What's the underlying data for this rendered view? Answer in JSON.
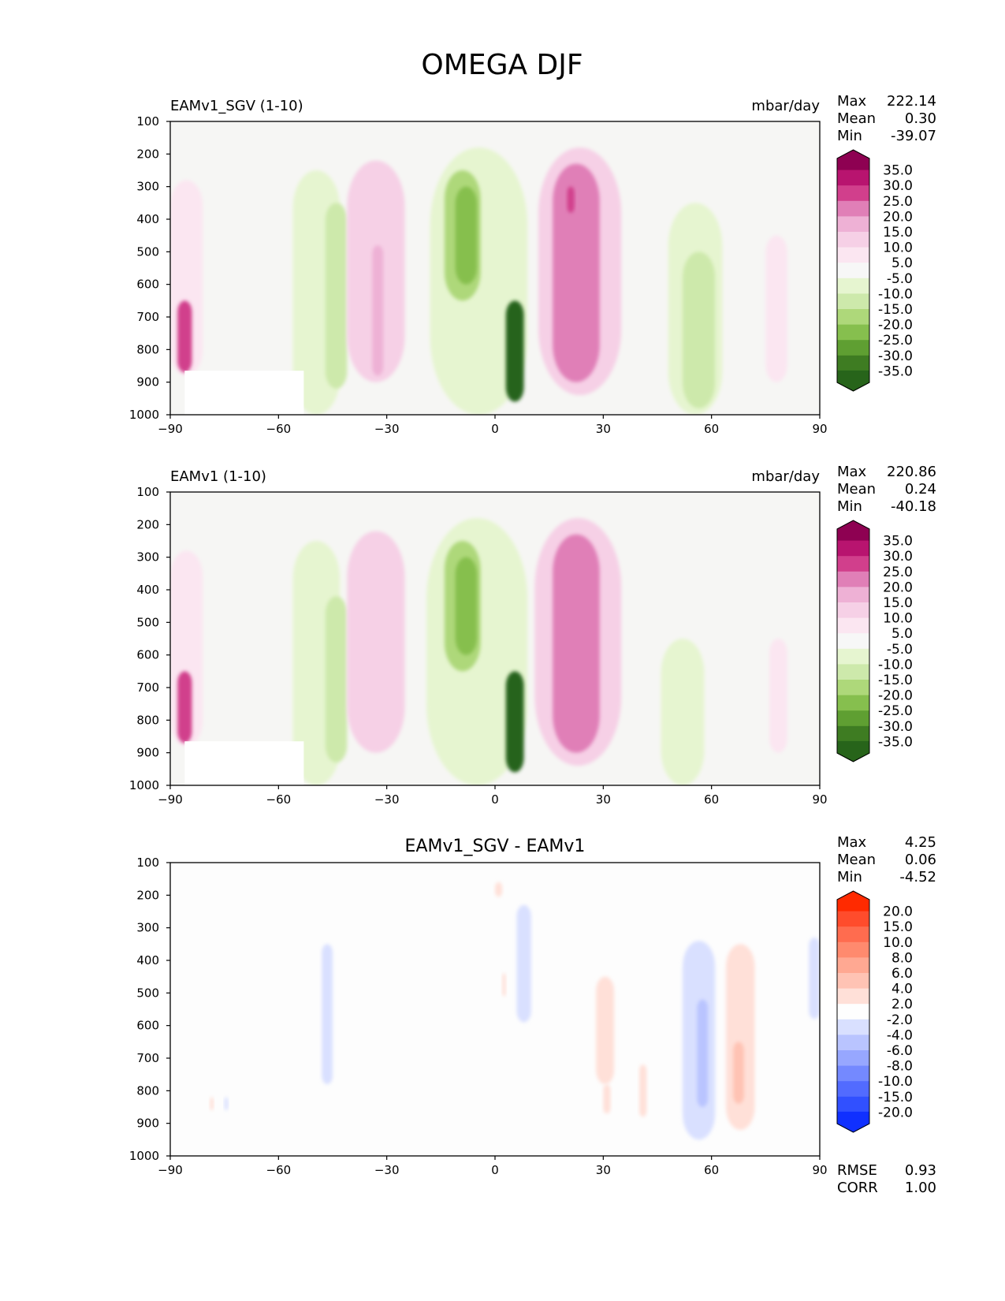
{
  "figure": {
    "title": "OMEGA DJF"
  },
  "colors": {
    "frame": "#000000",
    "plot_background": "#f6f6f4",
    "diff_background": "#fdfdfd",
    "white_mask": "#ffffff"
  },
  "panels": [
    {
      "id": "test",
      "left_title": "EAMv1_SGV (1-10)",
      "center_title": "",
      "units": "mbar/day",
      "stats": [
        {
          "label": "Max",
          "value": "222.14"
        },
        {
          "label": "Mean",
          "value": "0.30"
        },
        {
          "label": "Min",
          "value": "-39.07"
        }
      ],
      "footer_stats": []
    },
    {
      "id": "reference",
      "left_title": "EAMv1 (1-10)",
      "center_title": "",
      "units": "mbar/day",
      "stats": [
        {
          "label": "Max",
          "value": "220.86"
        },
        {
          "label": "Mean",
          "value": "0.24"
        },
        {
          "label": "Min",
          "value": "-40.18"
        }
      ],
      "footer_stats": []
    },
    {
      "id": "difference",
      "left_title": "",
      "center_title": "EAMv1_SGV - EAMv1",
      "units": "",
      "stats": [
        {
          "label": "Max",
          "value": "4.25"
        },
        {
          "label": "Mean",
          "value": "0.06"
        },
        {
          "label": "Min",
          "value": "-4.52"
        }
      ],
      "footer_stats": [
        {
          "label": "RMSE",
          "value": "0.93"
        },
        {
          "label": "CORR",
          "value": "1.00"
        }
      ]
    }
  ],
  "chart_data": [
    {
      "type": "heatmap",
      "subtype": "filled-contour zonal-mean cross section",
      "title": "EAMv1_SGV (1-10)",
      "units": "mbar/day",
      "xlabel": "",
      "ylabel": "",
      "xlim": [
        -90,
        90
      ],
      "ylim": [
        1000,
        100
      ],
      "x_ticks": [
        -90,
        -60,
        -30,
        0,
        30,
        60,
        90
      ],
      "y_ticks": [
        100,
        200,
        300,
        400,
        500,
        600,
        700,
        800,
        900,
        1000
      ],
      "colorbar": {
        "extend": "both",
        "levels": [
          "35.0",
          "30.0",
          "25.0",
          "20.0",
          "15.0",
          "10.0",
          "5.0",
          "-5.0",
          "-10.0",
          "-15.0",
          "-20.0",
          "-25.0",
          "-30.0",
          "-35.0"
        ],
        "colors": [
          "#8e0152",
          "#b8146f",
          "#d13f8c",
          "#e07fb7",
          "#eeb1d5",
          "#f6d0e6",
          "#fbe6f1",
          "#f7f7f7",
          "#e6f5d0",
          "#cde9ab",
          "#aed87a",
          "#86bf4e",
          "#5f9f32",
          "#3e7c22",
          "#27641a"
        ]
      },
      "features": [
        {
          "kind": "positive",
          "level": 1,
          "lon": [
            -90,
            -81
          ],
          "p": [
            280,
            880
          ]
        },
        {
          "kind": "positive",
          "level": 5,
          "lon": [
            -88,
            -84
          ],
          "p": [
            650,
            870
          ],
          "peak": "> 35"
        },
        {
          "kind": "negative",
          "level": 1,
          "lon": [
            -56,
            -43
          ],
          "p": [
            250,
            1000
          ]
        },
        {
          "kind": "negative",
          "level": 2,
          "lon": [
            -47,
            -41
          ],
          "p": [
            350,
            920
          ]
        },
        {
          "kind": "positive",
          "level": 2,
          "lon": [
            -41,
            -25
          ],
          "p": [
            220,
            900
          ]
        },
        {
          "kind": "positive",
          "level": 3,
          "lon": [
            -34,
            -31
          ],
          "p": [
            480,
            880
          ]
        },
        {
          "kind": "negative",
          "level": 1,
          "lon": [
            -18,
            9
          ],
          "p": [
            180,
            1000
          ]
        },
        {
          "kind": "negative",
          "level": 3,
          "lon": [
            -14,
            -4
          ],
          "p": [
            250,
            650
          ]
        },
        {
          "kind": "negative",
          "level": 4,
          "lon": [
            -11,
            -5
          ],
          "p": [
            300,
            600
          ]
        },
        {
          "kind": "negative",
          "level": 7,
          "lon": [
            3,
            8
          ],
          "p": [
            650,
            960
          ],
          "peak": "< -35"
        },
        {
          "kind": "positive",
          "level": 2,
          "lon": [
            12,
            35
          ],
          "p": [
            180,
            940
          ]
        },
        {
          "kind": "positive",
          "level": 4,
          "lon": [
            16,
            29
          ],
          "p": [
            230,
            900
          ]
        },
        {
          "kind": "positive",
          "level": 5,
          "lon": [
            20,
            22
          ],
          "p": [
            300,
            380
          ]
        },
        {
          "kind": "negative",
          "level": 1,
          "lon": [
            48,
            63
          ],
          "p": [
            350,
            1000
          ]
        },
        {
          "kind": "negative",
          "level": 2,
          "lon": [
            52,
            61
          ],
          "p": [
            500,
            980
          ]
        },
        {
          "kind": "positive",
          "level": 1,
          "lon": [
            75,
            81
          ],
          "p": [
            450,
            900
          ]
        }
      ]
    },
    {
      "type": "heatmap",
      "subtype": "filled-contour zonal-mean cross section",
      "title": "EAMv1 (1-10)",
      "units": "mbar/day",
      "xlabel": "",
      "ylabel": "",
      "xlim": [
        -90,
        90
      ],
      "ylim": [
        1000,
        100
      ],
      "x_ticks": [
        -90,
        -60,
        -30,
        0,
        30,
        60,
        90
      ],
      "y_ticks": [
        100,
        200,
        300,
        400,
        500,
        600,
        700,
        800,
        900,
        1000
      ],
      "colorbar": {
        "extend": "both",
        "levels": [
          "35.0",
          "30.0",
          "25.0",
          "20.0",
          "15.0",
          "10.0",
          "5.0",
          "-5.0",
          "-10.0",
          "-15.0",
          "-20.0",
          "-25.0",
          "-30.0",
          "-35.0"
        ],
        "colors": [
          "#8e0152",
          "#b8146f",
          "#d13f8c",
          "#e07fb7",
          "#eeb1d5",
          "#f6d0e6",
          "#fbe6f1",
          "#f7f7f7",
          "#e6f5d0",
          "#cde9ab",
          "#aed87a",
          "#86bf4e",
          "#5f9f32",
          "#3e7c22",
          "#27641a"
        ]
      },
      "features": [
        {
          "kind": "positive",
          "level": 1,
          "lon": [
            -90,
            -81
          ],
          "p": [
            280,
            880
          ]
        },
        {
          "kind": "positive",
          "level": 5,
          "lon": [
            -88,
            -84
          ],
          "p": [
            650,
            870
          ],
          "peak": "> 35"
        },
        {
          "kind": "negative",
          "level": 1,
          "lon": [
            -56,
            -43
          ],
          "p": [
            250,
            1000
          ]
        },
        {
          "kind": "negative",
          "level": 2,
          "lon": [
            -47,
            -41
          ],
          "p": [
            420,
            930
          ]
        },
        {
          "kind": "positive",
          "level": 2,
          "lon": [
            -41,
            -25
          ],
          "p": [
            220,
            900
          ]
        },
        {
          "kind": "negative",
          "level": 1,
          "lon": [
            -19,
            9
          ],
          "p": [
            180,
            1000
          ]
        },
        {
          "kind": "negative",
          "level": 3,
          "lon": [
            -14,
            -4
          ],
          "p": [
            250,
            650
          ]
        },
        {
          "kind": "negative",
          "level": 4,
          "lon": [
            -11,
            -5
          ],
          "p": [
            300,
            600
          ]
        },
        {
          "kind": "negative",
          "level": 7,
          "lon": [
            3,
            8
          ],
          "p": [
            650,
            960
          ],
          "peak": "< -35"
        },
        {
          "kind": "positive",
          "level": 2,
          "lon": [
            11,
            35
          ],
          "p": [
            180,
            940
          ]
        },
        {
          "kind": "positive",
          "level": 4,
          "lon": [
            16,
            29
          ],
          "p": [
            230,
            900
          ]
        },
        {
          "kind": "negative",
          "level": 1,
          "lon": [
            46,
            58
          ],
          "p": [
            550,
            1000
          ]
        },
        {
          "kind": "positive",
          "level": 1,
          "lon": [
            76,
            81
          ],
          "p": [
            550,
            900
          ]
        }
      ]
    },
    {
      "type": "heatmap",
      "subtype": "filled-contour zonal-mean cross section (difference)",
      "title": "EAMv1_SGV - EAMv1",
      "units": "",
      "xlabel": "",
      "ylabel": "",
      "xlim": [
        -90,
        90
      ],
      "ylim": [
        1000,
        100
      ],
      "x_ticks": [
        -90,
        -60,
        -30,
        0,
        30,
        60,
        90
      ],
      "y_ticks": [
        100,
        200,
        300,
        400,
        500,
        600,
        700,
        800,
        900,
        1000
      ],
      "colorbar": {
        "extend": "both",
        "levels": [
          "20.0",
          "15.0",
          "10.0",
          "8.0",
          "6.0",
          "4.0",
          "2.0",
          "-2.0",
          "-4.0",
          "-6.0",
          "-8.0",
          "-10.0",
          "-15.0",
          "-20.0"
        ],
        "colors": [
          "#ff2a00",
          "#ff4c2c",
          "#ff6c4f",
          "#ff8a6e",
          "#ffa892",
          "#ffc3b4",
          "#ffe0d8",
          "#fefefe",
          "#d9e0ff",
          "#b9c4ff",
          "#97a7ff",
          "#7489ff",
          "#526bff",
          "#3150ff",
          "#1030ff"
        ]
      },
      "features": [
        {
          "kind": "negative",
          "level": 1,
          "lon": [
            -48,
            -45
          ],
          "p": [
            350,
            780
          ]
        },
        {
          "kind": "positive",
          "level": 1,
          "lon": [
            0,
            2
          ],
          "p": [
            160,
            205
          ]
        },
        {
          "kind": "positive",
          "level": 1,
          "lon": [
            2,
            3
          ],
          "p": [
            440,
            510
          ]
        },
        {
          "kind": "negative",
          "level": 1,
          "lon": [
            6,
            10
          ],
          "p": [
            230,
            590
          ]
        },
        {
          "kind": "positive",
          "level": 1,
          "lon": [
            28,
            33
          ],
          "p": [
            450,
            780
          ]
        },
        {
          "kind": "positive",
          "level": 1,
          "lon": [
            30,
            32
          ],
          "p": [
            780,
            870
          ]
        },
        {
          "kind": "positive",
          "level": 1,
          "lon": [
            40,
            42
          ],
          "p": [
            720,
            880
          ]
        },
        {
          "kind": "negative",
          "level": 1,
          "lon": [
            52,
            61
          ],
          "p": [
            340,
            950
          ]
        },
        {
          "kind": "negative",
          "level": 2,
          "lon": [
            56,
            59
          ],
          "p": [
            520,
            850
          ]
        },
        {
          "kind": "positive",
          "level": 1,
          "lon": [
            64,
            72
          ],
          "p": [
            350,
            920
          ]
        },
        {
          "kind": "positive",
          "level": 2,
          "lon": [
            66,
            69
          ],
          "p": [
            650,
            840
          ]
        },
        {
          "kind": "negative",
          "level": 1,
          "lon": [
            87,
            90
          ],
          "p": [
            330,
            580
          ]
        },
        {
          "kind": "positive",
          "level": 1,
          "lon": [
            -79,
            -78
          ],
          "p": [
            820,
            860
          ]
        },
        {
          "kind": "negative",
          "level": 1,
          "lon": [
            -75,
            -74
          ],
          "p": [
            820,
            860
          ]
        }
      ]
    }
  ]
}
